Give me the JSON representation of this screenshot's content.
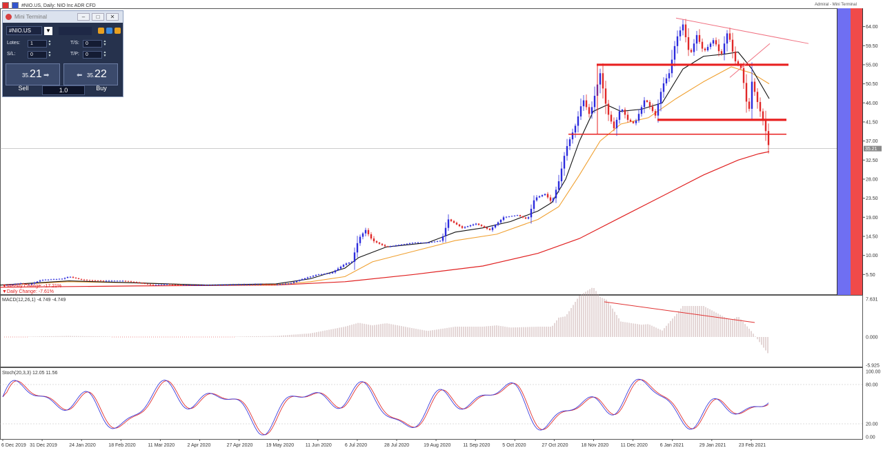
{
  "chart_title": "#NIO.US, Daily:  NIO Inc ADR CFD",
  "broker_label": "Admiral - Mini Terminal",
  "current_price_tag": "35.21",
  "daily_labels": [
    "▼Weekly Change: -17.21%",
    "▼Daily Change: -7.61%"
  ],
  "colors": {
    "bull": "#2b2bdd",
    "bear": "#e02828",
    "sma_short": "#111111",
    "sma_mid": "#f0a030",
    "sma_long": "#e02020",
    "macd": "#e03030",
    "stoch_main": "#3b3bdd",
    "stoch_signal": "#e03030",
    "side_blue": "#6f6ff2",
    "side_red": "#f04a4a",
    "terminal_bg": "#26324d"
  },
  "mini_terminal": {
    "title": "Mini Terminal",
    "symbol": "#NIO.US",
    "lots_label": "Lotes:",
    "lots_value": "1",
    "sl_label": "S/L:",
    "sl_value": "0",
    "ts_label": "T/S:",
    "ts_value": "0",
    "tp_label": "T/P:",
    "tp_value": "0",
    "sell_small": "35.",
    "sell_big": "21",
    "buy_small": "35.",
    "buy_big": "22",
    "sell_label": "Sell",
    "buy_label": "Buy",
    "lot_value": "1.0"
  },
  "panels": {
    "macd_label": "MACD(12,26,1) -4.749 -4.749",
    "stoch_label": "Stoch(20,3,3) 12.05 11.56"
  },
  "chart_data": {
    "type": "line",
    "main": {
      "ylim": [
        1.0,
        68.0
      ],
      "y_ticks": [
        "64.00",
        "59.50",
        "55.00",
        "50.50",
        "46.00",
        "41.50",
        "37.00",
        "32.50",
        "28.00",
        "23.50",
        "19.00",
        "14.50",
        "10.00",
        "5.50"
      ],
      "price_path": [
        [
          0,
          2.8
        ],
        [
          20,
          3.2
        ],
        [
          30,
          3.4
        ],
        [
          40,
          3.0
        ],
        [
          60,
          4.2
        ],
        [
          90,
          4.5
        ],
        [
          100,
          5.0
        ],
        [
          120,
          4.2
        ],
        [
          150,
          4.0
        ],
        [
          180,
          4.0
        ],
        [
          200,
          3.6
        ],
        [
          220,
          3.0
        ],
        [
          240,
          3.2
        ],
        [
          260,
          3.0
        ],
        [
          300,
          3.0
        ],
        [
          340,
          3.1
        ],
        [
          380,
          3.2
        ],
        [
          400,
          3.1
        ],
        [
          420,
          3.4
        ],
        [
          440,
          4.5
        ],
        [
          460,
          5.5
        ],
        [
          480,
          5.8
        ],
        [
          500,
          8.0
        ],
        [
          510,
          8.5
        ],
        [
          520,
          14.0
        ],
        [
          530,
          16.0
        ],
        [
          540,
          13.5
        ],
        [
          560,
          12.0
        ],
        [
          580,
          12.5
        ],
        [
          600,
          13.0
        ],
        [
          620,
          13.0
        ],
        [
          640,
          13.5
        ],
        [
          650,
          18.5
        ],
        [
          660,
          17.5
        ],
        [
          670,
          16.5
        ],
        [
          690,
          17.5
        ],
        [
          710,
          16.0
        ],
        [
          730,
          19.0
        ],
        [
          750,
          19.5
        ],
        [
          765,
          18.5
        ],
        [
          775,
          23.5
        ],
        [
          790,
          24.5
        ],
        [
          800,
          22.5
        ],
        [
          810,
          27.5
        ],
        [
          820,
          35.0
        ],
        [
          835,
          41.0
        ],
        [
          845,
          47.0
        ],
        [
          855,
          43.0
        ],
        [
          870,
          53.0
        ],
        [
          880,
          44.0
        ],
        [
          890,
          40.0
        ],
        [
          900,
          45.0
        ],
        [
          910,
          42.0
        ],
        [
          920,
          41.0
        ],
        [
          935,
          47.0
        ],
        [
          950,
          43.0
        ],
        [
          960,
          50.0
        ],
        [
          970,
          53.0
        ],
        [
          980,
          61.0
        ],
        [
          990,
          64.5
        ],
        [
          1000,
          57.0
        ],
        [
          1010,
          62.0
        ],
        [
          1020,
          58.0
        ],
        [
          1035,
          61.0
        ],
        [
          1045,
          57.0
        ],
        [
          1055,
          63.0
        ],
        [
          1065,
          56.0
        ],
        [
          1075,
          54.0
        ],
        [
          1085,
          43.0
        ],
        [
          1090,
          51.0
        ],
        [
          1095,
          48.0
        ],
        [
          1100,
          45.0
        ],
        [
          1108,
          41.0
        ],
        [
          1115,
          35.21
        ]
      ],
      "sma_short": [
        [
          0,
          3.0
        ],
        [
          100,
          4.0
        ],
        [
          200,
          3.5
        ],
        [
          300,
          3.0
        ],
        [
          400,
          3.3
        ],
        [
          450,
          4.5
        ],
        [
          500,
          7.0
        ],
        [
          520,
          9.5
        ],
        [
          560,
          12.0
        ],
        [
          620,
          13.0
        ],
        [
          660,
          15.5
        ],
        [
          700,
          16.5
        ],
        [
          740,
          18.0
        ],
        [
          780,
          20.5
        ],
        [
          800,
          22.5
        ],
        [
          820,
          28.0
        ],
        [
          840,
          37.0
        ],
        [
          860,
          44.0
        ],
        [
          880,
          45.5
        ],
        [
          900,
          44.0
        ],
        [
          930,
          44.5
        ],
        [
          960,
          46.0
        ],
        [
          990,
          54.0
        ],
        [
          1020,
          57.0
        ],
        [
          1050,
          57.5
        ],
        [
          1070,
          58.0
        ],
        [
          1090,
          54.0
        ],
        [
          1115,
          47.0
        ]
      ],
      "sma_mid": [
        [
          0,
          3.0
        ],
        [
          100,
          3.8
        ],
        [
          200,
          3.5
        ],
        [
          300,
          3.0
        ],
        [
          400,
          3.1
        ],
        [
          450,
          3.8
        ],
        [
          500,
          5.0
        ],
        [
          540,
          8.5
        ],
        [
          600,
          11.0
        ],
        [
          660,
          13.5
        ],
        [
          720,
          15.0
        ],
        [
          780,
          18.5
        ],
        [
          810,
          21.5
        ],
        [
          840,
          29.0
        ],
        [
          870,
          37.0
        ],
        [
          900,
          41.0
        ],
        [
          940,
          42.5
        ],
        [
          980,
          47.0
        ],
        [
          1020,
          51.0
        ],
        [
          1060,
          54.5
        ],
        [
          1090,
          53.0
        ],
        [
          1115,
          50.5
        ]
      ],
      "sma_long": [
        [
          0,
          2.5
        ],
        [
          200,
          2.8
        ],
        [
          400,
          3.0
        ],
        [
          500,
          3.8
        ],
        [
          600,
          5.5
        ],
        [
          700,
          7.5
        ],
        [
          780,
          10.5
        ],
        [
          840,
          14.0
        ],
        [
          900,
          19.0
        ],
        [
          960,
          24.0
        ],
        [
          1020,
          29.0
        ],
        [
          1070,
          32.5
        ],
        [
          1100,
          34.0
        ],
        [
          1115,
          34.5
        ]
      ],
      "horizontal_lines": [
        [
          865,
          1143,
          55.0
        ],
        [
          953,
          1140,
          42.0
        ],
        [
          824,
          1140,
          38.6
        ]
      ],
      "trend_lines": [
        [
          980,
          66.0,
          1172,
          60.0
        ],
        [
          1058,
          52.0,
          1116,
          60.0
        ]
      ]
    },
    "macd": {
      "ylim": [
        -5.925,
        7.631
      ],
      "y_ticks": [
        "7.631",
        "0.000",
        "-5.925"
      ]
    },
    "stoch": {
      "ylim": [
        0,
        100
      ],
      "y_ticks": [
        "100.00",
        "80.00",
        "20.00",
        "0.00"
      ]
    },
    "x_ticks": [
      "6 Dec 2019",
      "31 Dec 2019",
      "24 Jan 2020",
      "18 Feb 2020",
      "11 Mar 2020",
      "2 Apr 2020",
      "27 Apr 2020",
      "19 May 2020",
      "11 Jun 2020",
      "6 Jul 2020",
      "28 Jul 2020",
      "19 Aug 2020",
      "11 Sep 2020",
      "5 Oct 2020",
      "27 Oct 2020",
      "18 Nov 2020",
      "11 Dec 2020",
      "6 Jan 2021",
      "29 Jan 2021",
      "23 Feb 2021"
    ]
  }
}
